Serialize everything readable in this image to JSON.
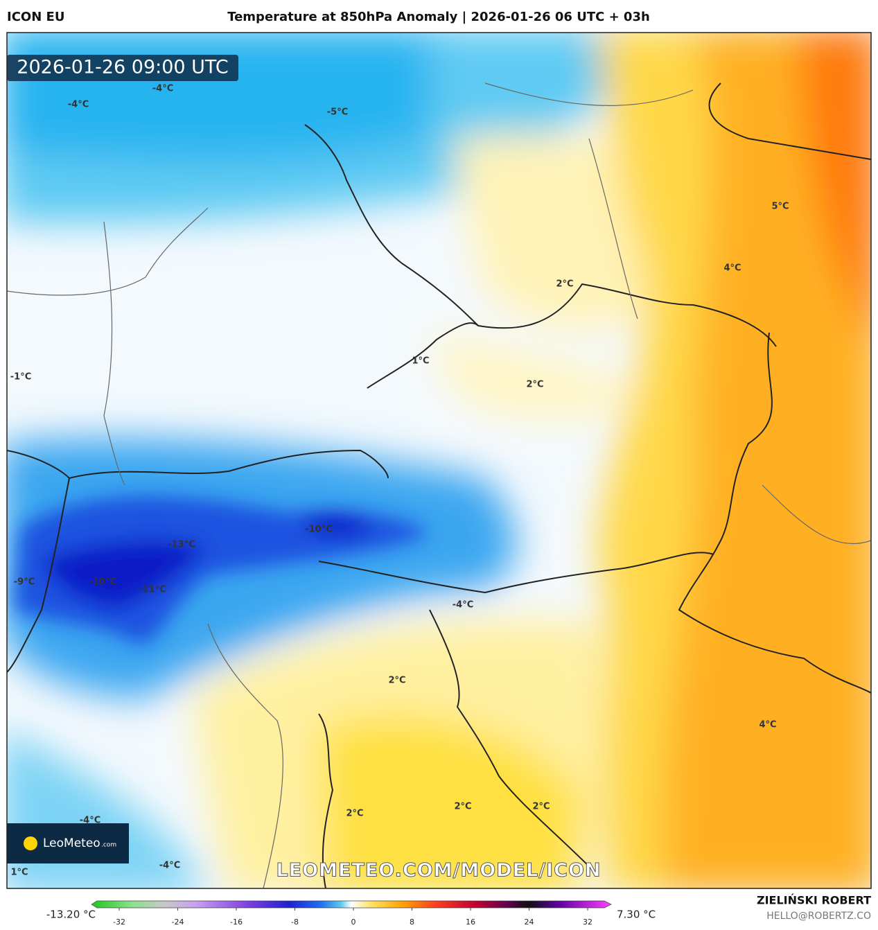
{
  "header": {
    "model": "ICON EU",
    "title": "Temperature at 850hPa Anomaly | 2026-01-26 06 UTC + 03h"
  },
  "map": {
    "timestamp": "2026-01-26 09:00 UTC",
    "labels": [
      "-4°C",
      "-4°C",
      "-5°C",
      "5°C",
      "4°C",
      "2°C",
      "1°C",
      "-1°C",
      "2°C",
      "-10°C",
      "-13°C",
      "-9°C",
      "-10°C",
      "-11°C",
      "-4°C",
      "2°C",
      "4°C",
      "2°C",
      "2°C",
      "2°C",
      "-4°C",
      "-4°C",
      "1°C"
    ],
    "watermark": "LEOMETEO.COM/MODEL/ICON",
    "logo": {
      "name": "LeoMeteo",
      "suffix": ".com"
    }
  },
  "colorbar": {
    "min_label": "-13.20 °C",
    "max_label": "7.30 °C",
    "ticks": [
      -32,
      -24,
      -16,
      -8,
      0,
      8,
      16,
      24,
      32
    ]
  },
  "footer": {
    "author": "ZIELIŃSKI ROBERT",
    "email": "HELLO@ROBERTZ.CO"
  }
}
